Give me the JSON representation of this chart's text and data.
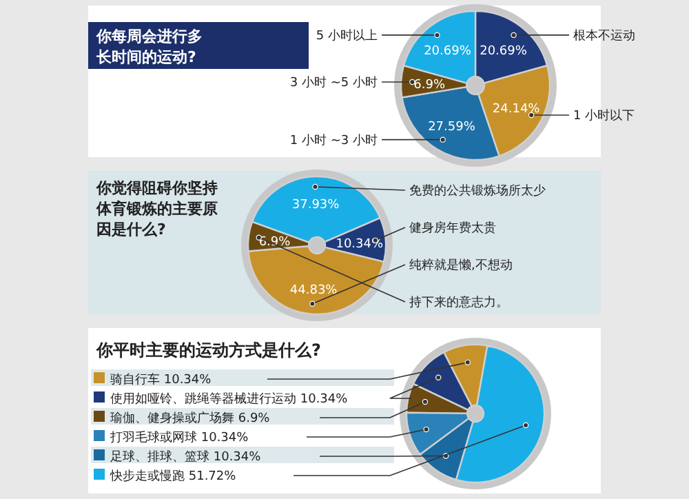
{
  "chart_data": [
    {
      "type": "pie",
      "title": "你每周会进行多长时间的运动?",
      "categories": [
        "根本不运动",
        "1 小时以下",
        "1 小时 ~3 小时",
        "3 小时 ~5 小时",
        "5 小时以上"
      ],
      "values": [
        20.69,
        24.14,
        27.59,
        6.9,
        20.69
      ],
      "value_labels": [
        "20.69%",
        "24.14%",
        "27.59%",
        "6.9%",
        "20.69%"
      ],
      "colors": [
        "#1f3a7a",
        "#c8922a",
        "#1d6fa5",
        "#6b4a12",
        "#1aaee6"
      ]
    },
    {
      "type": "pie",
      "title": "你觉得阻碍你坚持体育锻炼的主要原因是什么?",
      "categories": [
        "免费的公共锻炼场所太少",
        "健身房年费太贵",
        "纯粹就是懒,不想动",
        "持下来的意志力。"
      ],
      "values": [
        37.93,
        10.34,
        44.83,
        6.9
      ],
      "value_labels": [
        "37.93%",
        "10.34%",
        "44.83%",
        "6.9%"
      ],
      "colors": [
        "#1aaee6",
        "#1f3a7a",
        "#c8922a",
        "#6b4a12"
      ]
    },
    {
      "type": "pie",
      "legend": "left",
      "title": "你平时主要的运动方式是什么?",
      "categories": [
        "骑自行车",
        "使用如哑铃、跳绳等器械进行运动",
        "瑜伽、健身操或广场舞",
        "打羽毛球或网球",
        "足球、排球、篮球",
        "快步走或慢跑"
      ],
      "values": [
        10.34,
        10.34,
        6.9,
        10.34,
        10.34,
        51.72
      ],
      "value_labels": [
        "10.34%",
        "10.34%",
        "6.9%",
        "10.34%",
        "10.34%",
        "51.72%"
      ],
      "colors": [
        "#c8922a",
        "#1f3a7a",
        "#6b4a12",
        "#2a82b8",
        "#1a6aa0",
        "#1aaee6"
      ]
    }
  ]
}
